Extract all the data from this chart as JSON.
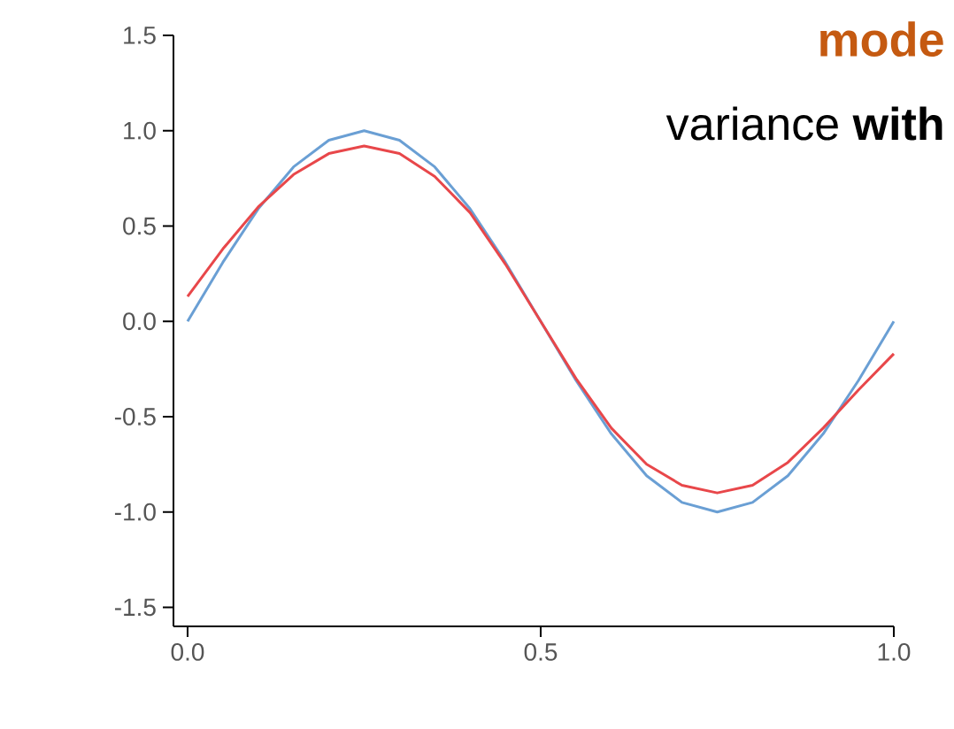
{
  "chart_data": {
    "type": "line",
    "x": [
      0,
      0.05,
      0.1,
      0.15,
      0.2,
      0.25,
      0.3,
      0.35,
      0.4,
      0.45,
      0.5,
      0.55,
      0.6,
      0.65,
      0.7,
      0.75,
      0.8,
      0.85,
      0.9,
      0.95,
      1.0
    ],
    "series": [
      {
        "color": "#6a9fd4",
        "values": [
          0,
          0.31,
          0.59,
          0.81,
          0.95,
          1,
          0.95,
          0.81,
          0.59,
          0.31,
          0,
          -0.31,
          -0.59,
          -0.81,
          -0.95,
          -1,
          -0.95,
          -0.81,
          -0.59,
          -0.31,
          0
        ]
      },
      {
        "color": "#e8474a",
        "values": [
          0.13,
          0.38,
          0.6,
          0.77,
          0.88,
          0.92,
          0.88,
          0.76,
          0.57,
          0.3,
          0.0,
          -0.3,
          -0.56,
          -0.75,
          -0.86,
          -0.9,
          -0.86,
          -0.74,
          -0.56,
          -0.36,
          -0.17
        ]
      }
    ],
    "xlim": [
      -0.02,
      1.0
    ],
    "ylim": [
      -1.6,
      1.5
    ],
    "xticks": [
      {
        "value": 0,
        "label": "0.0"
      },
      {
        "value": 0.5,
        "label": "0.5"
      },
      {
        "value": 1,
        "label": "1.0"
      }
    ],
    "yticks": [
      {
        "value": -1.5,
        "label": "-1.5"
      },
      {
        "value": -1,
        "label": "-1.0"
      },
      {
        "value": -0.5,
        "label": "-0.5"
      },
      {
        "value": 0,
        "label": "0.0"
      },
      {
        "value": 0.5,
        "label": "0.5"
      },
      {
        "value": 1,
        "label": "1.0"
      },
      {
        "value": 1.5,
        "label": "1.5"
      }
    ],
    "annotations": [
      "mode",
      "variance **with**"
    ],
    "grid": false,
    "marker": "none",
    "line_style": "solid"
  }
}
